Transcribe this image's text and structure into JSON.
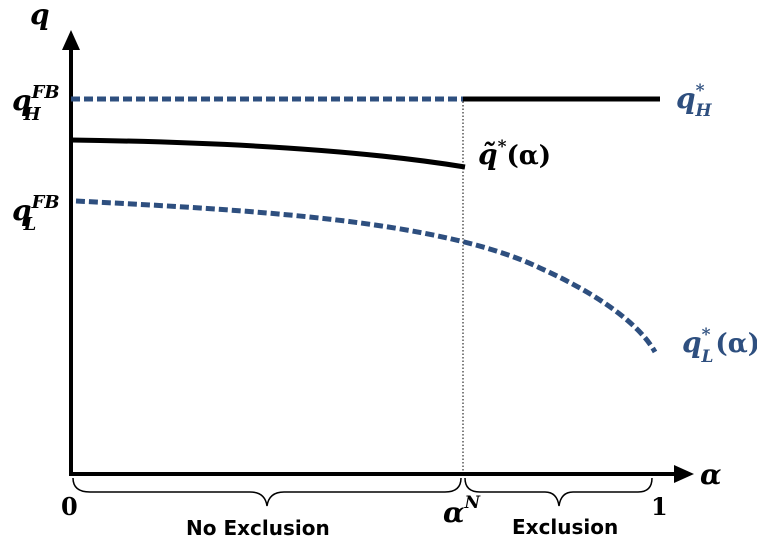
{
  "axes": {
    "y_label": "q",
    "x_label": "α"
  },
  "ticks": {
    "y_high": {
      "base": "q",
      "sub": "H",
      "sup": "FB"
    },
    "y_low": {
      "base": "q",
      "sub": "L",
      "sup": "FB"
    },
    "x_zero": "0",
    "x_alpha_n": {
      "base": "α",
      "sup": "N"
    },
    "x_one": "1"
  },
  "curves": {
    "q_h_star": {
      "base": "q",
      "sub": "H",
      "sup": "*"
    },
    "q_tilde_star": {
      "base": "q̃",
      "sup": "*",
      "arg": "(α)"
    },
    "q_l_star": {
      "base": "q",
      "sub": "L",
      "sup": "*",
      "arg": "(α)"
    }
  },
  "regions": {
    "no_exclusion": "No Exclusion",
    "exclusion": "Exclusion"
  },
  "colors": {
    "black": "#000000",
    "blue_dotted": "#2e4f7f"
  }
}
